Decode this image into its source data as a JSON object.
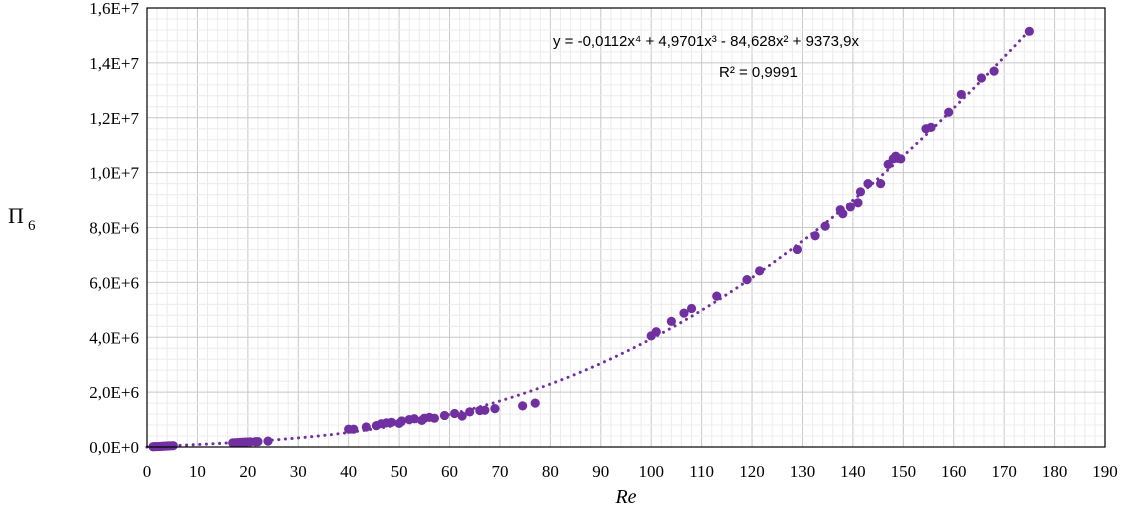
{
  "chart_data": {
    "type": "scatter",
    "xlabel": "Re",
    "ylabel": "Π",
    "ylabel_sub": "6",
    "xlim": [
      0,
      190
    ],
    "ylim": [
      0,
      16000000
    ],
    "x_ticks": [
      0,
      10,
      20,
      30,
      40,
      50,
      60,
      70,
      80,
      90,
      100,
      110,
      120,
      130,
      140,
      150,
      160,
      170,
      180,
      190
    ],
    "x_tick_labels": [
      "0",
      "10",
      "20",
      "30",
      "40",
      "50",
      "60",
      "70",
      "80",
      "90",
      "100",
      "110",
      "120",
      "130",
      "140",
      "150",
      "160",
      "170",
      "180",
      "190"
    ],
    "y_ticks": [
      0,
      2000000,
      4000000,
      6000000,
      8000000,
      10000000,
      12000000,
      14000000,
      16000000
    ],
    "y_tick_labels": [
      "0,0E+0",
      "2,0E+6",
      "4,0E+6",
      "6,0E+6",
      "8,0E+6",
      "1,0E+7",
      "1,2E+7",
      "1,4E+7",
      "1,6E+7"
    ],
    "grid": true,
    "minor_grid": true,
    "point_color": "#7030a0",
    "trendline": {
      "type": "polynomial",
      "degree": 4,
      "coefficients": [
        -0.0112,
        4.9701,
        -84.628,
        9373.9,
        0
      ],
      "style": "dotted",
      "color": "#7030a0",
      "equation_text": "y = -0,0112x⁴ + 4,9701x³ - 84,628x² + 9373,9x",
      "r2_text": "R² = 0,9991"
    },
    "points": [
      [
        1.2,
        10000
      ],
      [
        1.6,
        13000
      ],
      [
        2.0,
        16000
      ],
      [
        2.4,
        20000
      ],
      [
        2.8,
        24000
      ],
      [
        3.2,
        28000
      ],
      [
        3.6,
        32000
      ],
      [
        4.0,
        36000
      ],
      [
        4.4,
        40000
      ],
      [
        4.8,
        44000
      ],
      [
        5.2,
        48000
      ],
      [
        17.0,
        150000
      ],
      [
        17.5,
        155000
      ],
      [
        18.0,
        162000
      ],
      [
        18.5,
        168000
      ],
      [
        19.0,
        175000
      ],
      [
        19.5,
        180000
      ],
      [
        20.0,
        185000
      ],
      [
        20.5,
        188000
      ],
      [
        21.5,
        192000
      ],
      [
        22.0,
        195000
      ],
      [
        24.0,
        215000
      ],
      [
        40.0,
        650000
      ],
      [
        41.0,
        650000
      ],
      [
        43.5,
        730000
      ],
      [
        45.5,
        780000
      ],
      [
        46.5,
        850000
      ],
      [
        47.5,
        880000
      ],
      [
        48.5,
        900000
      ],
      [
        50.0,
        860000
      ],
      [
        50.5,
        950000
      ],
      [
        52.0,
        1000000
      ],
      [
        53.0,
        1030000
      ],
      [
        54.5,
        970000
      ],
      [
        55.0,
        1050000
      ],
      [
        56.0,
        1080000
      ],
      [
        57.0,
        1050000
      ],
      [
        59.0,
        1150000
      ],
      [
        61.0,
        1220000
      ],
      [
        62.5,
        1130000
      ],
      [
        64.0,
        1280000
      ],
      [
        66.0,
        1330000
      ],
      [
        67.0,
        1340000
      ],
      [
        69.0,
        1400000
      ],
      [
        74.5,
        1500000
      ],
      [
        77.0,
        1600000
      ],
      [
        100.0,
        4050000
      ],
      [
        101.0,
        4200000
      ],
      [
        104.0,
        4580000
      ],
      [
        106.5,
        4880000
      ],
      [
        108.0,
        5050000
      ],
      [
        113.0,
        5500000
      ],
      [
        119.0,
        6100000
      ],
      [
        121.5,
        6420000
      ],
      [
        129.0,
        7200000
      ],
      [
        132.5,
        7700000
      ],
      [
        134.5,
        8050000
      ],
      [
        137.5,
        8650000
      ],
      [
        138.0,
        8500000
      ],
      [
        139.5,
        8750000
      ],
      [
        141.0,
        8900000
      ],
      [
        141.5,
        9300000
      ],
      [
        143.0,
        9600000
      ],
      [
        145.5,
        9600000
      ],
      [
        147.0,
        10300000
      ],
      [
        148.0,
        10500000
      ],
      [
        148.5,
        10600000
      ],
      [
        149.5,
        10500000
      ],
      [
        154.5,
        11600000
      ],
      [
        155.5,
        11650000
      ],
      [
        159.0,
        12200000
      ],
      [
        161.5,
        12850000
      ],
      [
        165.5,
        13450000
      ],
      [
        168.0,
        13700000
      ],
      [
        175.0,
        15150000
      ]
    ]
  }
}
